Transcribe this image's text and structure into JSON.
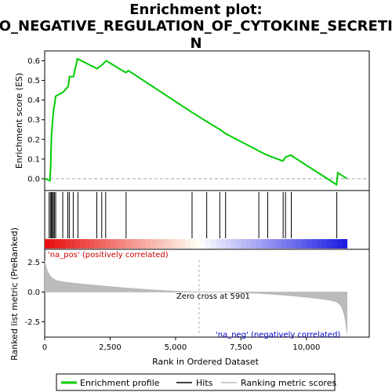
{
  "chart_data": {
    "type": "line",
    "title_line1": "Enrichment plot:",
    "title_line2": "GO_NEGATIVE_REGULATION_OF_CYTOKINE_SECRETIO",
    "title_line3": "N",
    "top_panel": {
      "ylabel": "Enrichment score (ES)",
      "ylim": [
        -0.06,
        0.65
      ],
      "yticks": [
        "0.0",
        "0.1",
        "0.2",
        "0.3",
        "0.4",
        "0.5",
        "0.6"
      ],
      "ytick_values": [
        0.0,
        0.1,
        0.2,
        0.3,
        0.4,
        0.5,
        0.6
      ],
      "series": [
        {
          "name": "Enrichment profile",
          "color": "#00cc00",
          "x": [
            0,
            200,
            230,
            260,
            300,
            340,
            380,
            420,
            700,
            900,
            950,
            1100,
            1150,
            1250,
            2000,
            2200,
            2350,
            3100,
            3200,
            5600,
            6200,
            6700,
            6900,
            8200,
            8500,
            9100,
            9200,
            9400,
            11150,
            11200,
            11550
          ],
          "y": [
            0.0,
            -0.01,
            0.07,
            0.22,
            0.29,
            0.35,
            0.38,
            0.42,
            0.44,
            0.47,
            0.52,
            0.52,
            0.55,
            0.61,
            0.56,
            0.58,
            0.6,
            0.54,
            0.55,
            0.34,
            0.29,
            0.25,
            0.23,
            0.14,
            0.12,
            0.09,
            0.11,
            0.12,
            -0.03,
            0.03,
            0.0
          ]
        }
      ]
    },
    "hits_panel": {
      "positions": [
        170,
        220,
        260,
        290,
        330,
        370,
        420,
        690,
        880,
        940,
        1090,
        1270,
        1990,
        2180,
        2330,
        3110,
        5630,
        6190,
        6690,
        6910,
        8180,
        8520,
        9110,
        9200,
        9420,
        11160
      ]
    },
    "rank_panel": {
      "ylabel": "Ranked list metric (PreRanked)",
      "ylim": [
        -3.8,
        3.6
      ],
      "yticks": [
        "2.5",
        "0.0",
        "-2.5"
      ],
      "ytick_values": [
        2.5,
        0.0,
        -2.5
      ],
      "xlabel": "Rank in Ordered Dataset",
      "xlim": [
        0,
        12400
      ],
      "xticks": [
        "0",
        "2,500",
        "5,000",
        "7,500",
        "10,000"
      ],
      "xtick_values": [
        0,
        2500,
        5000,
        7500,
        10000
      ],
      "zero_cross_label": "Zero cross at 5901",
      "zero_cross": 5901,
      "pos_label": "'na_pos' (positively correlated)",
      "neg_label": "'na_neg' (negatively correlated)",
      "n_genes": 11550
    },
    "legend": [
      {
        "label": "Enrichment profile",
        "color": "#00cc00"
      },
      {
        "label": "Hits",
        "color": "#000000"
      },
      {
        "label": "Ranking metric scores",
        "color": "#bbbbbb"
      }
    ]
  }
}
